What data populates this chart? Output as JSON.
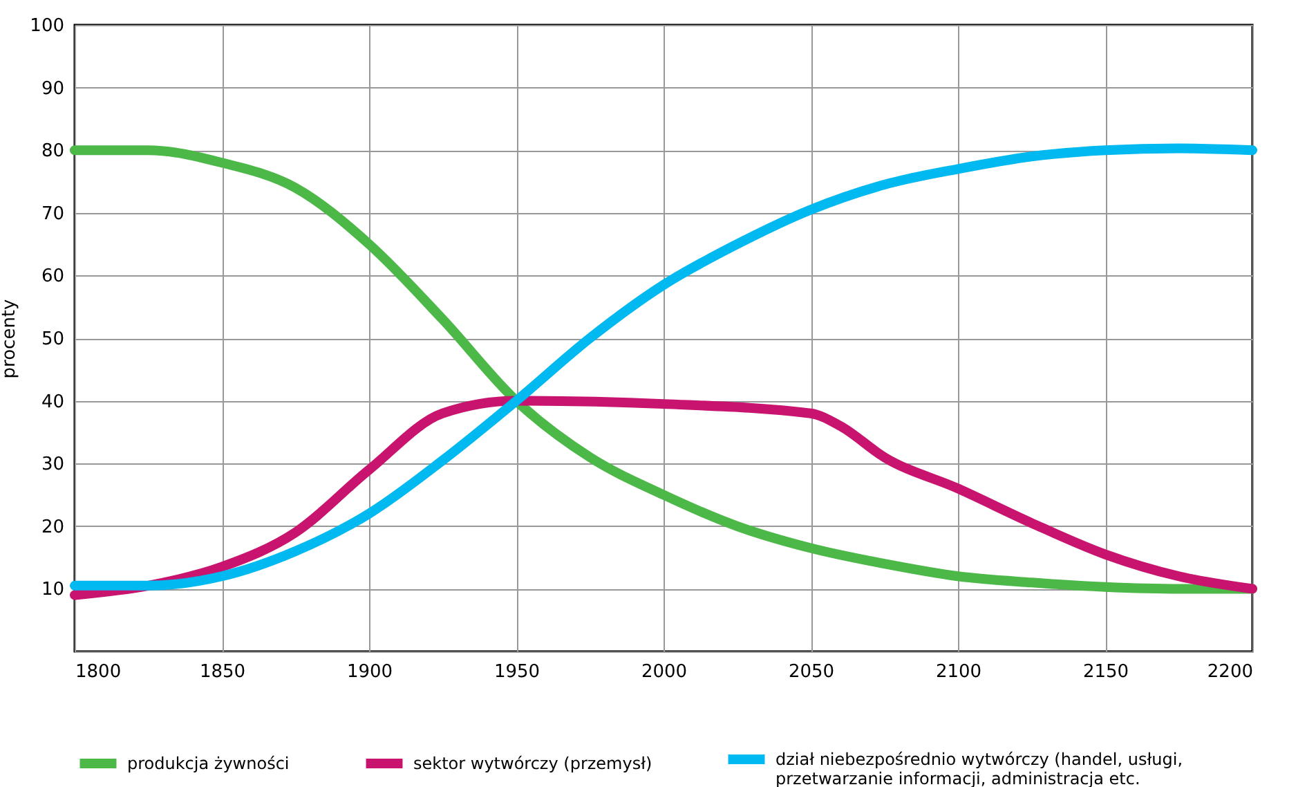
{
  "chart_data": {
    "type": "line",
    "ylabel": "procenty",
    "x": [
      1800,
      1825,
      1850,
      1875,
      1900,
      1925,
      1950,
      1975,
      2000,
      2025,
      2050,
      2075,
      2100,
      2125,
      2150,
      2175,
      2200
    ],
    "series": [
      {
        "name": "produkcja żywności",
        "color": "#4cb848",
        "values": [
          80,
          80,
          78,
          74,
          65,
          53,
          40,
          31,
          25,
          20,
          16.5,
          14,
          12,
          11,
          10.3,
          10,
          10
        ]
      },
      {
        "name": "sektor wytwórczy (przemysł)",
        "color": "#c8146e",
        "x": [
          1800,
          1825,
          1850,
          1875,
          1900,
          1925,
          1950,
          2000,
          2050,
          2060,
          2075,
          2100,
          2125,
          2150,
          2175,
          2200
        ],
        "values": [
          9,
          10.5,
          13.5,
          19,
          29,
          38,
          40,
          39.5,
          38,
          36,
          31,
          26,
          20.5,
          15.5,
          12,
          10
        ]
      },
      {
        "name": "dział niebezpośrednio wytwórczy (handel, usługi, przetwarzanie informacji, administracja etc.",
        "color": "#00b9f0",
        "values": [
          10.5,
          10.5,
          12,
          16,
          22,
          30.5,
          40,
          50,
          58.5,
          65,
          70.5,
          74.5,
          77,
          79,
          80,
          80.3,
          80
        ]
      }
    ],
    "xlim": [
      1800,
      2200
    ],
    "xticks": [
      1800,
      1850,
      1900,
      1950,
      2000,
      2050,
      2100,
      2150,
      2200
    ],
    "ylim": [
      0,
      100
    ],
    "yticks": [
      {
        "value": 0,
        "label": null
      },
      10,
      20,
      30,
      40,
      50,
      60,
      70,
      80,
      90,
      100
    ],
    "grid": true,
    "legend": "bottom",
    "line_style": "solid",
    "marker": "none"
  }
}
